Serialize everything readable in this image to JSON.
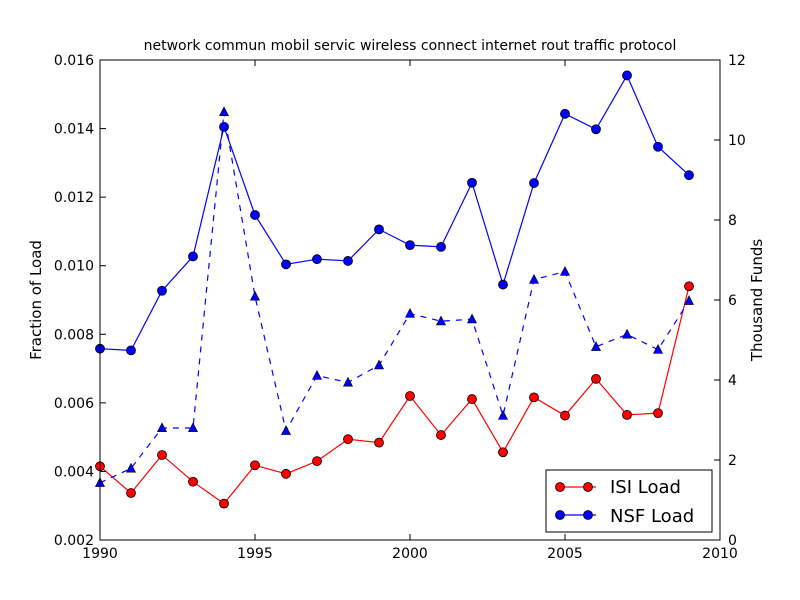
{
  "chart_data": {
    "type": "line",
    "title": "network commun mobil servic wireless connect internet rout traffic protocol",
    "xlabel": "",
    "ylabel": "Fraction of Load",
    "y2label": "Thousand Funds",
    "xlim": [
      1990,
      2010
    ],
    "ylim": [
      0.002,
      0.016
    ],
    "y2lim": [
      0,
      12
    ],
    "x_ticks": [
      "1990",
      "1995",
      "2000",
      "2005",
      "2010"
    ],
    "y_ticks": [
      "0.002",
      "0.004",
      "0.006",
      "0.008",
      "0.010",
      "0.012",
      "0.014",
      "0.016"
    ],
    "y2_ticks": [
      "0",
      "2",
      "4",
      "6",
      "8",
      "10",
      "12"
    ],
    "grid": false,
    "legend_position": "lower-right",
    "x": [
      1990,
      1991,
      1992,
      1993,
      1994,
      1995,
      1996,
      1997,
      1998,
      1999,
      2000,
      2001,
      2002,
      2003,
      2004,
      2005,
      2006,
      2007,
      2008,
      2009
    ],
    "series": [
      {
        "name": "ISI Load",
        "axis": "left",
        "color": "#ff0000",
        "marker": "circle",
        "line": "solid",
        "values": [
          0.00415,
          0.00337,
          0.00448,
          0.0037,
          0.00306,
          0.00418,
          0.00393,
          0.0043,
          0.00494,
          0.00484,
          0.0062,
          0.00506,
          0.00611,
          0.00456,
          0.00616,
          0.00563,
          0.0067,
          0.00565,
          0.0057,
          0.0094
        ]
      },
      {
        "name": "NSF Load",
        "axis": "left",
        "color": "#0000ff",
        "marker": "circle",
        "line": "solid",
        "values": [
          0.00758,
          0.00753,
          0.00927,
          0.01027,
          0.01405,
          0.01148,
          0.01004,
          0.01019,
          0.01014,
          0.01106,
          0.0106,
          0.01055,
          0.01242,
          0.00945,
          0.01241,
          0.01443,
          0.01398,
          0.01555,
          0.01347,
          0.01264
        ]
      },
      {
        "axis": "right",
        "color": "#0000ff",
        "marker": "triangle",
        "line": "dashed",
        "values": [
          1.43,
          1.79,
          2.8,
          2.8,
          10.7,
          6.09,
          2.73,
          4.11,
          3.94,
          4.37,
          5.66,
          5.47,
          5.52,
          3.11,
          6.51,
          6.71,
          4.83,
          5.14,
          4.76,
          5.98
        ]
      }
    ]
  }
}
